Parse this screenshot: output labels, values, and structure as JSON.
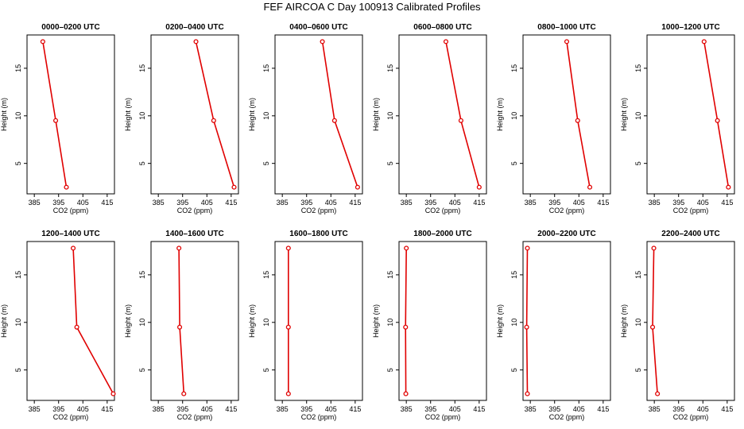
{
  "chart_data": {
    "type": "line",
    "title": "FEF AIRCOA C  Day 100913  Calibrated Profiles",
    "xlabel": "CO2 (ppm)",
    "ylabel": "Height (m)",
    "xlim": [
      382,
      418
    ],
    "ylim": [
      1.8,
      18.5
    ],
    "xticks": [
      385,
      395,
      405,
      415
    ],
    "yticks": [
      5,
      10,
      15
    ],
    "heights": [
      17.8,
      9.5,
      2.5
    ],
    "panels": [
      {
        "title": "0000–0200 UTC",
        "co2": [
          388.5,
          393.8,
          398.2
        ]
      },
      {
        "title": "0200–0400 UTC",
        "co2": [
          400.5,
          407.8,
          416.2
        ]
      },
      {
        "title": "0400–0600 UTC",
        "co2": [
          401.5,
          406.5,
          416.0
        ]
      },
      {
        "title": "0600–0800 UTC",
        "co2": [
          401.3,
          407.5,
          415.0
        ]
      },
      {
        "title": "0800–1000 UTC",
        "co2": [
          400.0,
          404.5,
          409.5
        ]
      },
      {
        "title": "1000–1200 UTC",
        "co2": [
          405.5,
          411.0,
          415.5
        ]
      },
      {
        "title": "1200–1400 UTC",
        "co2": [
          401.0,
          402.5,
          417.5
        ]
      },
      {
        "title": "1400–1600 UTC",
        "co2": [
          393.5,
          393.8,
          395.5
        ]
      },
      {
        "title": "1600–1800 UTC",
        "co2": [
          387.5,
          387.5,
          387.5
        ]
      },
      {
        "title": "1800–2000 UTC",
        "co2": [
          385.0,
          384.7,
          384.8
        ]
      },
      {
        "title": "2000–2200 UTC",
        "co2": [
          383.8,
          383.5,
          383.8
        ]
      },
      {
        "title": "2200–2400 UTC",
        "co2": [
          384.8,
          384.3,
          386.3
        ]
      }
    ]
  }
}
